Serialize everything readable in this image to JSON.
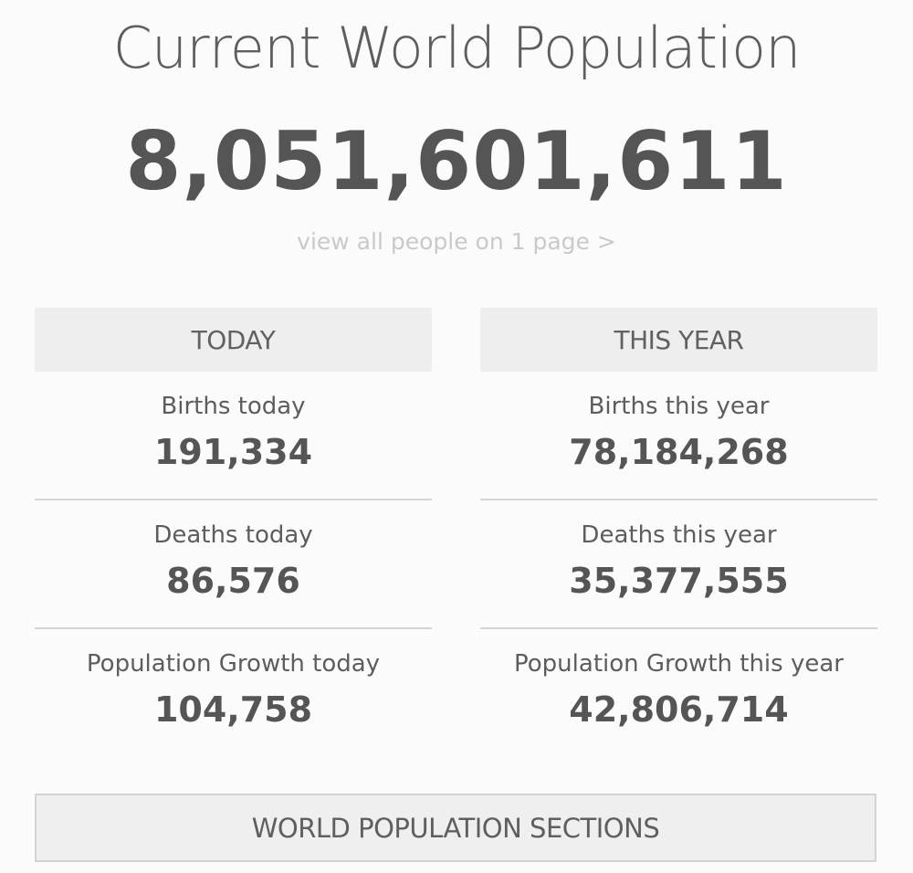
{
  "header": {
    "title": "Current World Population",
    "counter": "8,051,601,611",
    "view_link": "view all people on 1 page >"
  },
  "today": {
    "heading": "TODAY",
    "stats": [
      {
        "label": "Births today",
        "value": "191,334"
      },
      {
        "label": "Deaths today",
        "value": "86,576"
      },
      {
        "label": "Population Growth today",
        "value": "104,758"
      }
    ]
  },
  "this_year": {
    "heading": "THIS YEAR",
    "stats": [
      {
        "label": "Births this year",
        "value": "78,184,268"
      },
      {
        "label": "Deaths this year",
        "value": "35,377,555"
      },
      {
        "label": "Population Growth this year",
        "value": "42,806,714"
      }
    ]
  },
  "sections_button": {
    "label": "WORLD POPULATION SECTIONS"
  }
}
